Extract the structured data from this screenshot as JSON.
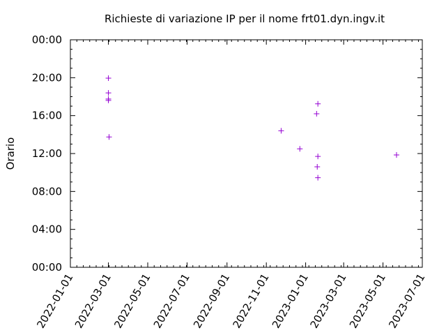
{
  "chart_data": {
    "type": "scatter",
    "title": "Richieste di variazione IP per il nome frt01.dyn.ingv.it",
    "xlabel": "",
    "ylabel": "Orario",
    "x_axis": {
      "type": "date",
      "range": [
        "2022-01-01",
        "2023-07-01"
      ],
      "ticks": [
        "2022-01-01",
        "2022-03-01",
        "2022-05-01",
        "2022-07-01",
        "2022-09-01",
        "2022-11-01",
        "2023-01-01",
        "2023-03-01",
        "2023-05-01",
        "2023-07-01"
      ]
    },
    "y_axis": {
      "unit": "hours",
      "range": [
        0,
        24
      ],
      "ticks": [
        0,
        4,
        8,
        12,
        16,
        20,
        24
      ],
      "tick_labels": [
        "00:00",
        "04:00",
        "08:00",
        "12:00",
        "16:00",
        "20:00",
        "00:00"
      ]
    },
    "marker": "+",
    "color": "#9400d3",
    "grid": false,
    "legend": "none",
    "points": [
      {
        "date": "2022-03-01",
        "hour": 19.95
      },
      {
        "date": "2022-03-01",
        "hour": 18.4
      },
      {
        "date": "2022-03-01",
        "hour": 17.75
      },
      {
        "date": "2022-03-01",
        "hour": 17.6
      },
      {
        "date": "2022-03-02",
        "hour": 13.75
      },
      {
        "date": "2022-11-24",
        "hour": 14.4
      },
      {
        "date": "2022-12-23",
        "hour": 12.5
      },
      {
        "date": "2023-01-18",
        "hour": 16.2
      },
      {
        "date": "2023-01-19",
        "hour": 10.6
      },
      {
        "date": "2023-01-20",
        "hour": 17.25
      },
      {
        "date": "2023-01-20",
        "hour": 11.7
      },
      {
        "date": "2023-01-20",
        "hour": 9.45
      },
      {
        "date": "2023-05-22",
        "hour": 11.85
      }
    ]
  }
}
